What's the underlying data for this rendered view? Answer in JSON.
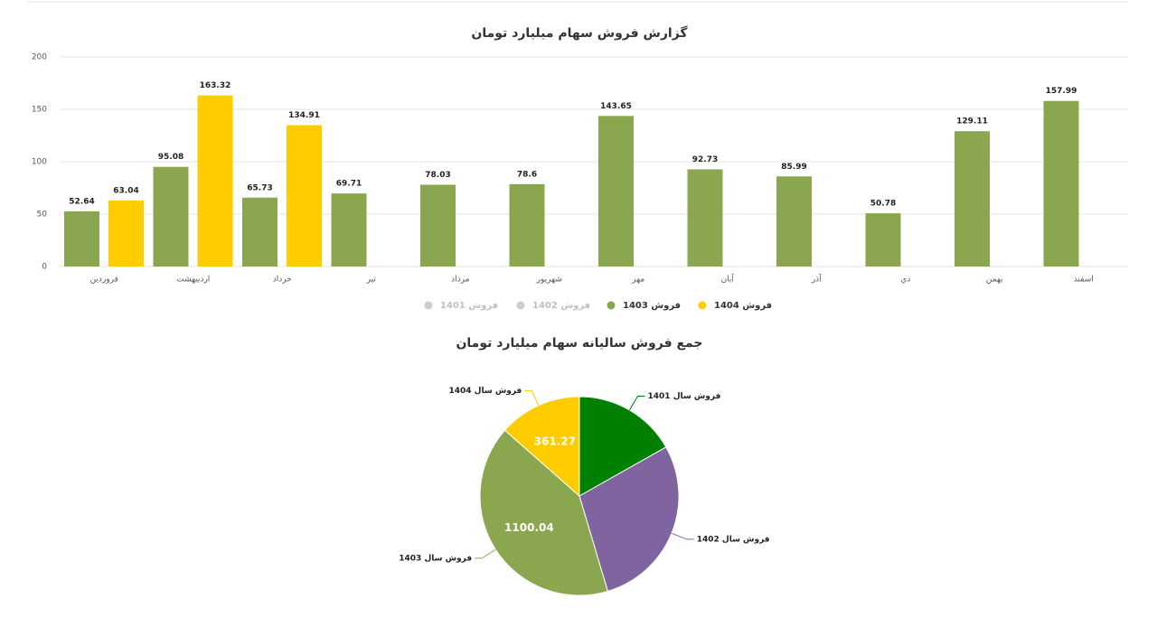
{
  "chart_data": [
    {
      "type": "bar",
      "title": "گزارش فروش سهام میلیارد تومان",
      "categories": [
        "فروردین",
        "اردیبهشت",
        "خرداد",
        "تیر",
        "مرداد",
        "شهریور",
        "مهر",
        "آبان",
        "آذر",
        "دي",
        "بهمن",
        "اسفند"
      ],
      "series": [
        {
          "name": "فروش 1401",
          "color": "#cccccc",
          "hidden": true
        },
        {
          "name": "فروش 1402",
          "color": "#cccccc",
          "hidden": true
        },
        {
          "name": "فروش 1403",
          "color": "#8aa64e",
          "values": [
            52.64,
            95.08,
            65.73,
            69.71,
            78.03,
            78.6,
            143.65,
            92.73,
            85.99,
            50.78,
            129.11,
            157.99
          ]
        },
        {
          "name": "فروش 1404",
          "color": "#ffcc00",
          "values": [
            63.04,
            163.32,
            134.91,
            null,
            null,
            null,
            null,
            null,
            null,
            null,
            null,
            null
          ]
        }
      ],
      "ylim": [
        0,
        200
      ],
      "yticks": [
        0,
        50,
        100,
        150,
        200
      ],
      "grid": true,
      "legend": "bottom"
    },
    {
      "type": "pie",
      "title": "جمع فروش سالیانه سهام میلیارد تومان",
      "categories": [
        "فروش سال 1401",
        "فروش سال 1402",
        "فروش سال 1403",
        "فروش سال 1404"
      ],
      "values": [
        450,
        765,
        1100.04,
        361.27
      ],
      "colors": [
        "#008000",
        "#8064a0",
        "#8aa64e",
        "#ffcc00"
      ],
      "data_labels": [
        false,
        false,
        true,
        true
      ]
    }
  ]
}
